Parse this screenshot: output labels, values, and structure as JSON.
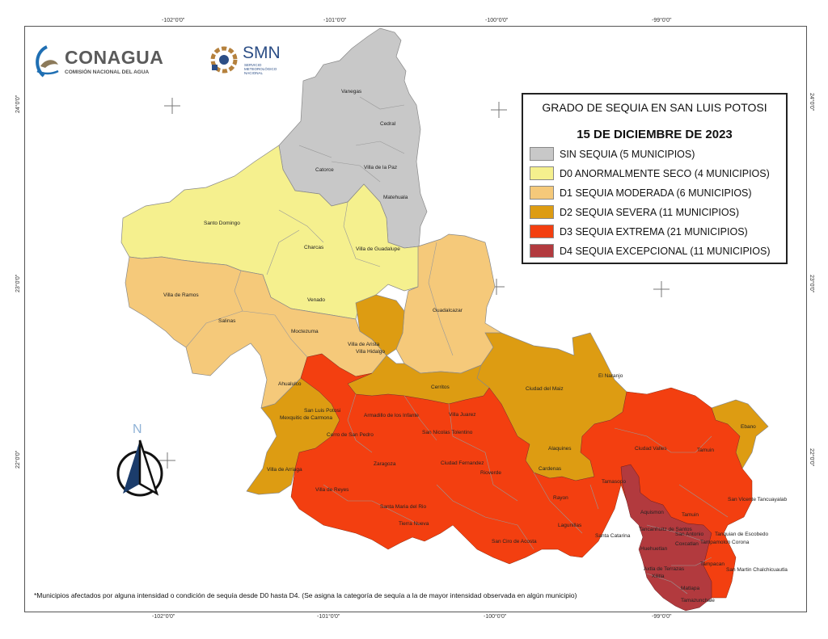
{
  "top_ticks": [
    "-102°0'0\"",
    "-101°0'0\"",
    "-100°0'0\"",
    "-99°0'0\""
  ],
  "bottom_ticks": [
    "-102°0'0\"",
    "-101°0'0\"",
    "-100°0'0\"",
    "-99°0'0\""
  ],
  "left_ticks": [
    "24°0'0\"",
    "23°0'0\"",
    "22°0'0\""
  ],
  "right_ticks": [
    "24°0'0\"",
    "23°0'0\"",
    "22°0'0\""
  ],
  "logos": {
    "conagua_name": "CONAGUA",
    "conagua_sub": "COMISIÓN NACIONAL DEL AGUA",
    "smn_name": "SMN",
    "smn_sub1": "SERVICIO",
    "smn_sub2": "METEOROLÓGICO",
    "smn_sub3": "NACIONAL"
  },
  "legend": {
    "title": "GRADO DE SEQUIA EN SAN LUIS POTOSI",
    "date": "15 DE DICIEMBRE DE 2023",
    "items": [
      {
        "label": "SIN SEQUIA  (5 MUNICIPIOS)",
        "color": "#c8c8c8"
      },
      {
        "label": "D0  ANORMALMENTE SECO  (4 MUNICIPIOS)",
        "color": "#f5f08e"
      },
      {
        "label": "D1  SEQUIA MODERADA  (6 MUNICIPIOS)",
        "color": "#f5c97a"
      },
      {
        "label": "D2  SEQUIA SEVERA  (11 MUNICIPIOS)",
        "color": "#dd9c12"
      },
      {
        "label": "D3  SEQUIA EXTREMA  (21 MUNICIPIOS)",
        "color": "#f33f10"
      },
      {
        "label": "D4  SEQUIA EXCEPCIONAL (11 MUNICIPIOS)",
        "color": "#b23a3e"
      }
    ]
  },
  "north": "N",
  "footnote": "*Municipios afectados por alguna intensidad o condición de sequía desde D0 hasta D4. (Se asigna la categoría de sequía a la de mayor intensidad observada en algún municipio)",
  "municipios": [
    "Vanegas",
    "Cedral",
    "Catorce",
    "Villa de la Paz",
    "Matehuala",
    "Santo Domingo",
    "Charcas",
    "Villa de Guadalupe",
    "Venado",
    "Villa de Ramos",
    "Salinas",
    "Moctezuma",
    "Guadalcazar",
    "Villa de Arista",
    "Villa Hidalgo",
    "Ahualulco",
    "El Naranjo",
    "Ciudad del Maiz",
    "Cerritos",
    "Villa Juarez",
    "San Luis Potosi",
    "Mexquitic de Carmona",
    "Armadillo de los Infante",
    "San Nicolas Tolentino",
    "Cerro de San Pedro",
    "Ebano",
    "Ciudad Valles",
    "Tamuin",
    "Alaquines",
    "Zaragoza",
    "Ciudad Fernandez",
    "Rioverde",
    "Cardenas",
    "Villa de Arriaga",
    "Villa de Reyes",
    "Tamasopo",
    "Rayon",
    "Santa Maria del Rio",
    "Aquismon",
    "Tamuin",
    "San Vicente Tancuayalab",
    "Tierra Nueva",
    "Lagunillas",
    "Santa Catarina",
    "Tancanhuitz de Santos",
    "San Antonio",
    "Tanquian de Escobedo",
    "Coxcatlan",
    "Tampamolon Corona",
    "Huehuetlan",
    "San Ciro de Acosta",
    "Tampacan",
    "San Martin Chalchicuautla",
    "Axtla de Terrazas",
    "Xilitla",
    "Matlapa",
    "Tamazunchale"
  ]
}
